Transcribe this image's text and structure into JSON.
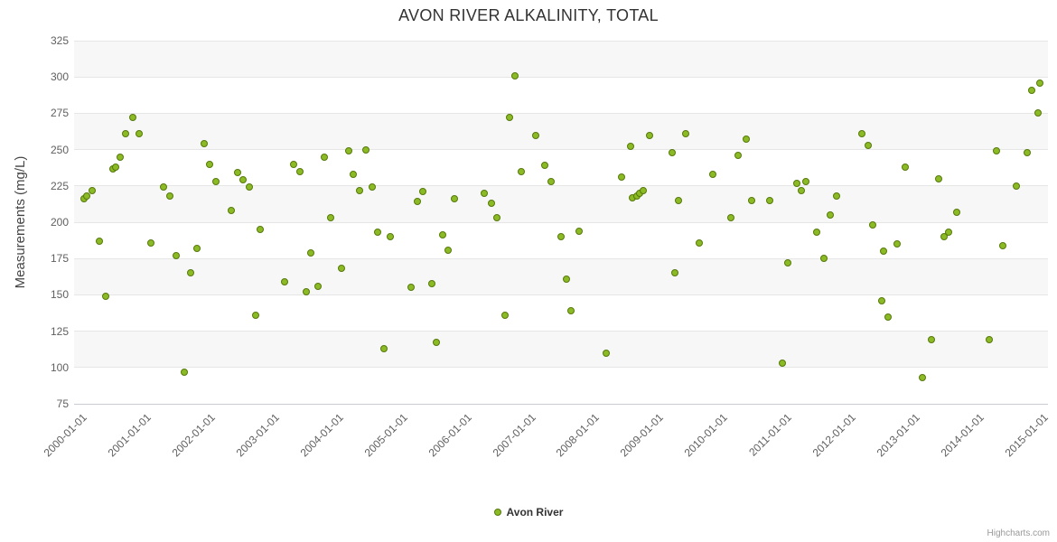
{
  "credits": "Highcharts.com",
  "legend": {
    "label": "Avon River"
  },
  "colors": {
    "marker_fill": "#8bba25",
    "marker_stroke": "#55790a",
    "gridline": "#e6e6e6",
    "band": "#f7f7f7",
    "axis_text": "#606060",
    "title_text": "#333333"
  },
  "chart_data": {
    "type": "scatter",
    "title": "AVON RIVER ALKALINITY, TOTAL",
    "xlabel": "",
    "ylabel": "Measurements (mg/L)",
    "ylim": [
      75,
      325
    ],
    "ytick_step": 25,
    "xlim": [
      1999.9,
      2015.1
    ],
    "xticks": [
      2000,
      2001,
      2002,
      2003,
      2004,
      2005,
      2006,
      2007,
      2008,
      2009,
      2010,
      2011,
      2012,
      2013,
      2014,
      2015
    ],
    "xtick_labels": [
      "2000-01-01",
      "2001-01-01",
      "2002-01-01",
      "2003-01-01",
      "2004-01-01",
      "2005-01-01",
      "2006-01-01",
      "2007-01-01",
      "2008-01-01",
      "2009-01-01",
      "2010-01-01",
      "2011-01-01",
      "2012-01-01",
      "2013-01-01",
      "2014-01-01",
      "2015-01-01"
    ],
    "grid": true,
    "alternate_band": true,
    "legend_position": "bottom",
    "series": [
      {
        "name": "Avon River",
        "points": [
          [
            2000.05,
            216
          ],
          [
            2000.1,
            218
          ],
          [
            2000.18,
            222
          ],
          [
            2000.3,
            187
          ],
          [
            2000.4,
            149
          ],
          [
            2000.5,
            237
          ],
          [
            2000.55,
            238
          ],
          [
            2000.62,
            245
          ],
          [
            2000.7,
            261
          ],
          [
            2000.82,
            272
          ],
          [
            2000.92,
            261
          ],
          [
            2001.1,
            186
          ],
          [
            2001.3,
            224
          ],
          [
            2001.4,
            218
          ],
          [
            2001.5,
            177
          ],
          [
            2001.62,
            97
          ],
          [
            2001.72,
            165
          ],
          [
            2001.82,
            182
          ],
          [
            2001.93,
            254
          ],
          [
            2002.02,
            240
          ],
          [
            2002.12,
            228
          ],
          [
            2002.35,
            208
          ],
          [
            2002.45,
            234
          ],
          [
            2002.53,
            229
          ],
          [
            2002.63,
            224
          ],
          [
            2002.73,
            136
          ],
          [
            2002.81,
            195
          ],
          [
            2003.19,
            159
          ],
          [
            2003.33,
            240
          ],
          [
            2003.43,
            235
          ],
          [
            2003.52,
            152
          ],
          [
            2003.6,
            179
          ],
          [
            2003.7,
            156
          ],
          [
            2003.8,
            245
          ],
          [
            2003.9,
            203
          ],
          [
            2004.08,
            168
          ],
          [
            2004.18,
            249
          ],
          [
            2004.25,
            233
          ],
          [
            2004.36,
            222
          ],
          [
            2004.46,
            250
          ],
          [
            2004.56,
            224
          ],
          [
            2004.64,
            193
          ],
          [
            2004.74,
            113
          ],
          [
            2004.84,
            190
          ],
          [
            2005.16,
            155
          ],
          [
            2005.26,
            214
          ],
          [
            2005.34,
            221
          ],
          [
            2005.48,
            158
          ],
          [
            2005.55,
            117
          ],
          [
            2005.65,
            191
          ],
          [
            2005.74,
            181
          ],
          [
            2005.84,
            216
          ],
          [
            2006.3,
            220
          ],
          [
            2006.42,
            213
          ],
          [
            2006.5,
            203
          ],
          [
            2006.62,
            136
          ],
          [
            2006.7,
            272
          ],
          [
            2006.78,
            301
          ],
          [
            2006.88,
            235
          ],
          [
            2007.1,
            260
          ],
          [
            2007.25,
            239
          ],
          [
            2007.35,
            228
          ],
          [
            2007.5,
            190
          ],
          [
            2007.58,
            161
          ],
          [
            2007.65,
            139
          ],
          [
            2007.78,
            194
          ],
          [
            2008.2,
            110
          ],
          [
            2008.45,
            231
          ],
          [
            2008.58,
            252
          ],
          [
            2008.62,
            217
          ],
          [
            2008.68,
            218
          ],
          [
            2008.73,
            220
          ],
          [
            2008.78,
            222
          ],
          [
            2008.88,
            260
          ],
          [
            2009.24,
            248
          ],
          [
            2009.28,
            165
          ],
          [
            2009.34,
            215
          ],
          [
            2009.45,
            261
          ],
          [
            2009.66,
            186
          ],
          [
            2009.87,
            233
          ],
          [
            2010.15,
            203
          ],
          [
            2010.27,
            246
          ],
          [
            2010.39,
            257
          ],
          [
            2010.48,
            215
          ],
          [
            2010.76,
            215
          ],
          [
            2010.95,
            103
          ],
          [
            2011.04,
            172
          ],
          [
            2011.18,
            227
          ],
          [
            2011.25,
            222
          ],
          [
            2011.32,
            228
          ],
          [
            2011.49,
            193
          ],
          [
            2011.6,
            175
          ],
          [
            2011.7,
            205
          ],
          [
            2011.8,
            218
          ],
          [
            2012.19,
            261
          ],
          [
            2012.29,
            253
          ],
          [
            2012.37,
            198
          ],
          [
            2012.5,
            146
          ],
          [
            2012.54,
            180
          ],
          [
            2012.6,
            135
          ],
          [
            2012.75,
            185
          ],
          [
            2012.87,
            238
          ],
          [
            2013.14,
            93
          ],
          [
            2013.28,
            119
          ],
          [
            2013.39,
            230
          ],
          [
            2013.48,
            190
          ],
          [
            2013.55,
            193
          ],
          [
            2013.67,
            207
          ],
          [
            2014.19,
            119
          ],
          [
            2014.3,
            249
          ],
          [
            2014.4,
            184
          ],
          [
            2014.61,
            225
          ],
          [
            2014.77,
            248
          ],
          [
            2014.84,
            291
          ],
          [
            2014.94,
            275
          ],
          [
            2014.97,
            296
          ]
        ]
      }
    ]
  }
}
